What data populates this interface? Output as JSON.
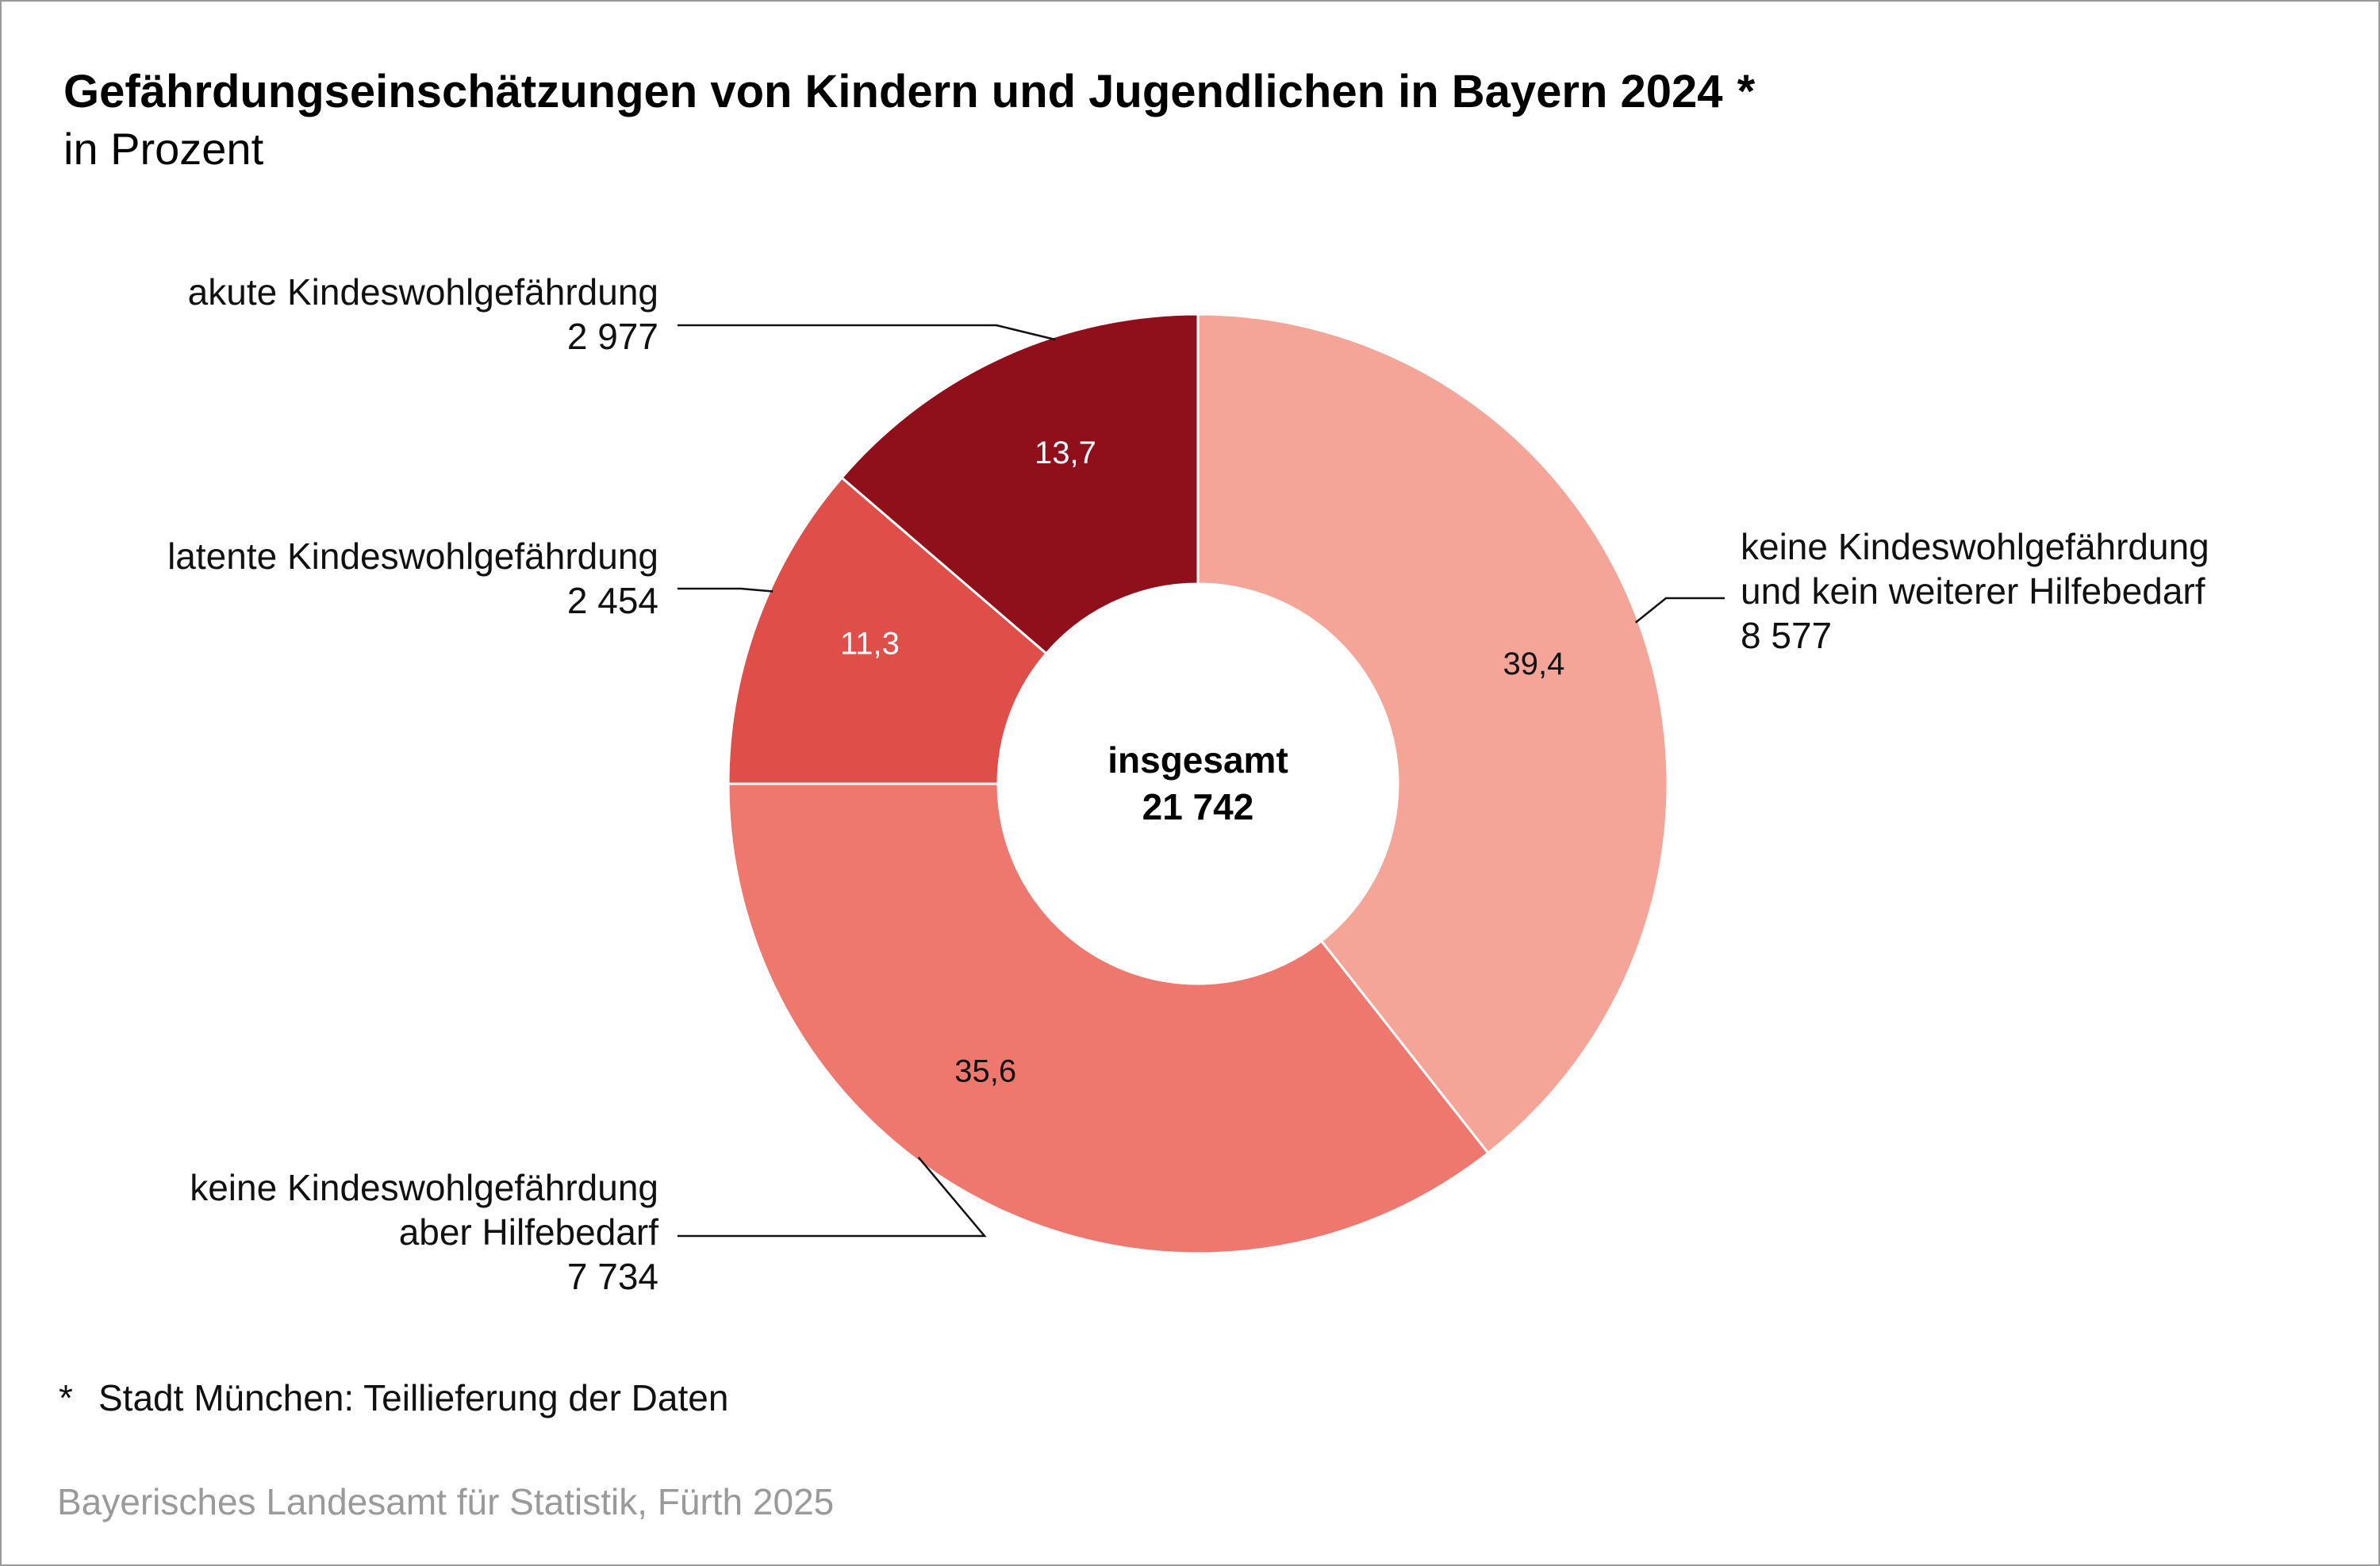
{
  "chart_data": {
    "type": "pie",
    "title": "Gefährdungseinschätzungen von Kindern und Jugendlichen in Bayern 2024",
    "title_marker": "*",
    "subtitle": "in Prozent",
    "center": {
      "line1": "insgesamt",
      "line2": "21 742"
    },
    "slices": [
      {
        "label_lines": [
          "keine Kindeswohlgefährdung",
          "und kein weiterer Hilfebedarf"
        ],
        "count": "8 577",
        "percent": 39.4,
        "percent_label": "39,4",
        "color": "#f4a597",
        "text_color": "#111111"
      },
      {
        "label_lines": [
          "keine Kindeswohlgefährdung",
          "aber Hilfebedarf"
        ],
        "count": "7 734",
        "percent": 35.6,
        "percent_label": "35,6",
        "color": "#ee776e",
        "text_color": "#111111"
      },
      {
        "label_lines": [
          "latente Kindeswohlgefährdung"
        ],
        "count": "2 454",
        "percent": 11.3,
        "percent_label": "11,3",
        "color": "#e04e4a",
        "text_color": "#ffffff"
      },
      {
        "label_lines": [
          "akute Kindeswohlgefährdung"
        ],
        "count": "2 977",
        "percent": 13.7,
        "percent_label": "13,7",
        "color": "#8f101a",
        "text_color": "#ffffff"
      }
    ]
  },
  "footnote": {
    "marker": "*",
    "text": "Stadt München: Teillieferung der Daten"
  },
  "source": "Bayerisches Landesamt für Statistik, Fürth 2025"
}
